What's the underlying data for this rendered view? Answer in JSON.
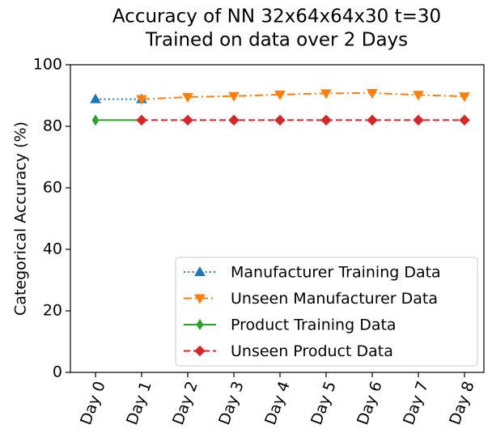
{
  "chart_data": {
    "type": "line",
    "title": [
      "Accuracy of NN 32x64x64x30 t=30",
      "Trained on data over 2 Days"
    ],
    "ylabel": "Categorical Accuracy (%)",
    "categories": [
      "Day 0",
      "Day 1",
      "Day 2",
      "Day 3",
      "Day 4",
      "Day 5",
      "Day 6",
      "Day 7",
      "Day 8"
    ],
    "ylim": [
      0,
      100
    ],
    "yticks": [
      0,
      20,
      40,
      60,
      80,
      100
    ],
    "grid": false,
    "legend": "lower right",
    "series": [
      {
        "name": "Manufacturer Training Data",
        "color": "#1f77b4",
        "linestyle": "dotted",
        "marker": "triangle-up",
        "values": [
          88.8,
          88.8,
          null,
          null,
          null,
          null,
          null,
          null,
          null
        ]
      },
      {
        "name": "Unseen Manufacturer Data",
        "color": "#ff7f0e",
        "linestyle": "dashdot",
        "marker": "triangle-down",
        "values": [
          null,
          88.8,
          89.5,
          89.8,
          90.3,
          90.7,
          90.8,
          90.2,
          89.7
        ]
      },
      {
        "name": "Product Training Data",
        "color": "#2ca02c",
        "linestyle": "solid",
        "marker": "thin-diamond",
        "values": [
          82,
          82,
          null,
          null,
          null,
          null,
          null,
          null,
          null
        ]
      },
      {
        "name": "Unseen Product Data",
        "color": "#d62728",
        "linestyle": "dashed",
        "marker": "diamond",
        "values": [
          null,
          82,
          82,
          82,
          82,
          82,
          82,
          82,
          82
        ]
      }
    ]
  }
}
